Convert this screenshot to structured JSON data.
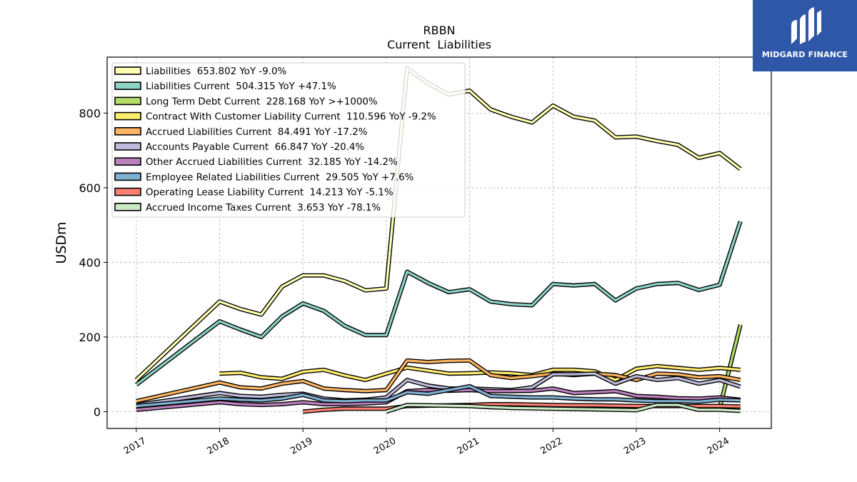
{
  "logo": {
    "text": "MIDGARD FINANCE"
  },
  "chart_data": {
    "type": "line",
    "title": "RBBN",
    "subtitle": "Current  Liabilities",
    "ylabel": "USDm",
    "xlabel": "",
    "ylim": [
      -45,
      950
    ],
    "xlim": [
      2016.65,
      2024.62
    ],
    "yticks": [
      0,
      200,
      400,
      600,
      800
    ],
    "xticks": [
      "2017",
      "2018",
      "2019",
      "2020",
      "2021",
      "2022",
      "2023",
      "2024"
    ],
    "grid": true,
    "legend_position": "top-left",
    "series": [
      {
        "name": "Liabilities  653.802 YoY -9.0%",
        "color": "#ffffb3",
        "x": [
          2017.0,
          2018.0,
          2018.25,
          2018.5,
          2018.75,
          2019.0,
          2019.25,
          2019.5,
          2019.75,
          2020.0,
          2020.25,
          2020.5,
          2020.75,
          2021.0,
          2021.25,
          2021.5,
          2021.75,
          2022.0,
          2022.25,
          2022.5,
          2022.75,
          2023.0,
          2023.25,
          2023.5,
          2023.75,
          2024.0,
          2024.25
        ],
        "y": [
          85,
          295,
          275,
          260,
          335,
          365,
          365,
          350,
          325,
          330,
          920,
          880,
          850,
          860,
          810,
          790,
          775,
          820,
          790,
          780,
          735,
          737,
          725,
          715,
          680,
          693,
          650
        ]
      },
      {
        "name": "Liabilities Current  504.315 YoY +47.1%",
        "color": "#8dd3c7",
        "x": [
          2017.0,
          2018.0,
          2018.25,
          2018.5,
          2018.75,
          2019.0,
          2019.25,
          2019.5,
          2019.75,
          2020.0,
          2020.25,
          2020.5,
          2020.75,
          2021.0,
          2021.25,
          2021.5,
          2021.75,
          2022.0,
          2022.25,
          2022.5,
          2022.75,
          2023.0,
          2023.25,
          2023.5,
          2023.75,
          2024.0,
          2024.25
        ],
        "y": [
          72,
          242,
          220,
          200,
          255,
          290,
          270,
          230,
          205,
          205,
          375,
          345,
          320,
          328,
          295,
          288,
          285,
          342,
          338,
          342,
          298,
          330,
          342,
          345,
          326,
          340,
          510
        ]
      },
      {
        "name": "Long Term Debt Current  228.168 YoY >+1000%",
        "color": "#b3de69",
        "x": [
          2024.0,
          2024.25
        ],
        "y": [
          10,
          233
        ]
      },
      {
        "name": "Contract With Customer Liability Current  110.596 YoY -9.2%",
        "color": "#ffed6f",
        "x": [
          2018.0,
          2018.25,
          2018.5,
          2018.75,
          2019.0,
          2019.25,
          2019.5,
          2019.75,
          2020.0,
          2020.25,
          2020.5,
          2020.75,
          2021.0,
          2021.25,
          2021.5,
          2021.75,
          2022.0,
          2022.25,
          2022.5,
          2022.75,
          2023.0,
          2023.25,
          2023.5,
          2023.75,
          2024.0,
          2024.25
        ],
        "y": [
          102,
          104,
          92,
          88,
          107,
          112,
          97,
          85,
          102,
          118,
          110,
          102,
          103,
          105,
          103,
          98,
          112,
          112,
          108,
          85,
          115,
          122,
          117,
          112,
          117,
          112
        ]
      },
      {
        "name": "Accrued Liabilities Current  84.491 YoY -17.2%",
        "color": "#fdb462",
        "x": [
          2017.0,
          2018.0,
          2018.25,
          2018.5,
          2018.75,
          2019.0,
          2019.25,
          2019.5,
          2019.75,
          2020.0,
          2020.25,
          2020.5,
          2020.75,
          2021.0,
          2021.25,
          2021.5,
          2021.75,
          2022.0,
          2022.25,
          2022.5,
          2022.75,
          2023.0,
          2023.25,
          2023.5,
          2023.75,
          2024.0,
          2024.25
        ],
        "y": [
          28,
          78,
          65,
          62,
          75,
          82,
          62,
          58,
          55,
          58,
          137,
          133,
          136,
          137,
          98,
          90,
          95,
          102,
          98,
          102,
          98,
          85,
          102,
          100,
          92,
          95,
          85
        ]
      },
      {
        "name": "Accounts Payable Current  66.847 YoY -20.4%",
        "color": "#bebada",
        "x": [
          2017.0,
          2018.0,
          2018.25,
          2018.5,
          2018.75,
          2019.0,
          2019.25,
          2019.5,
          2019.75,
          2020.0,
          2020.25,
          2020.5,
          2020.75,
          2021.0,
          2021.25,
          2021.5,
          2021.75,
          2022.0,
          2022.25,
          2022.5,
          2022.75,
          2023.0,
          2023.25,
          2023.5,
          2023.75,
          2024.0,
          2024.25
        ],
        "y": [
          18,
          50,
          42,
          40,
          45,
          48,
          35,
          30,
          32,
          38,
          85,
          70,
          62,
          62,
          60,
          58,
          65,
          100,
          100,
          102,
          75,
          95,
          85,
          90,
          75,
          85,
          67
        ]
      },
      {
        "name": "Other Accrued Liabilities Current  32.185 YoY -14.2%",
        "color": "#bc80bd",
        "x": [
          2017.0,
          2018.0,
          2018.25,
          2018.5,
          2018.75,
          2019.0,
          2019.25,
          2019.5,
          2019.75,
          2020.0,
          2020.25,
          2020.5,
          2020.75,
          2021.0,
          2021.25,
          2021.5,
          2021.75,
          2022.0,
          2022.25,
          2022.5,
          2022.75,
          2023.0,
          2023.25,
          2023.5,
          2023.75,
          2024.0,
          2024.25
        ],
        "y": [
          5,
          25,
          20,
          18,
          20,
          25,
          20,
          20,
          22,
          25,
          55,
          58,
          56,
          58,
          55,
          55,
          56,
          62,
          50,
          52,
          55,
          42,
          40,
          36,
          35,
          38,
          32
        ]
      },
      {
        "name": "Employee Related Liabilities Current  29.505 YoY +7.6%",
        "color": "#80b1d3",
        "x": [
          2017.0,
          2018.0,
          2018.25,
          2018.5,
          2018.75,
          2019.0,
          2019.25,
          2019.5,
          2019.75,
          2020.0,
          2020.25,
          2020.5,
          2020.75,
          2021.0,
          2021.25,
          2021.5,
          2021.75,
          2022.0,
          2022.25,
          2022.5,
          2022.75,
          2023.0,
          2023.25,
          2023.5,
          2023.75,
          2024.0,
          2024.25
        ],
        "y": [
          15,
          35,
          32,
          30,
          35,
          45,
          30,
          28,
          30,
          30,
          52,
          48,
          58,
          68,
          42,
          40,
          38,
          38,
          35,
          33,
          33,
          30,
          28,
          28,
          27,
          32,
          30
        ]
      },
      {
        "name": "Operating Lease Liability Current  14.213 YoY -5.1%",
        "color": "#fb8072",
        "x": [
          2019.0,
          2019.25,
          2019.5,
          2019.75,
          2020.0,
          2020.25,
          2020.5,
          2020.75,
          2021.0,
          2021.25,
          2021.5,
          2021.75,
          2022.0,
          2022.25,
          2022.5,
          2022.75,
          2023.0,
          2023.25,
          2023.5,
          2023.75,
          2024.0,
          2024.25
        ],
        "y": [
          0,
          5,
          8,
          8,
          8,
          15,
          16,
          17,
          18,
          20,
          20,
          19,
          18,
          17,
          17,
          16,
          15,
          15,
          15,
          15,
          15,
          14
        ]
      },
      {
        "name": "Accrued Income Taxes Current  3.653 YoY -78.1%",
        "color": "#ccebc5",
        "x": [
          2020.0,
          2020.25,
          2020.5,
          2020.75,
          2021.0,
          2021.25,
          2021.5,
          2021.75,
          2022.0,
          2022.25,
          2022.5,
          2022.75,
          2023.0,
          2023.25,
          2023.5,
          2023.75,
          2024.0,
          2024.25
        ],
        "y": [
          0,
          18,
          17,
          16,
          15,
          12,
          10,
          9,
          8,
          7,
          6,
          5,
          4,
          18,
          18,
          5,
          5,
          2
        ]
      }
    ]
  }
}
